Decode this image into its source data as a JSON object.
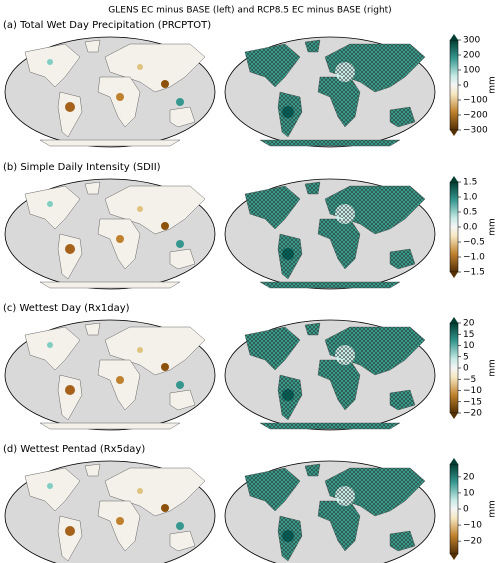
{
  "figure": {
    "title": "GLENS EC minus BASE (left) and RCP8.5 EC minus BASE (right)",
    "panels": [
      {
        "label": "(a) Total Wet Day Precipitation (PRCPTOT)",
        "colorbar": {
          "unit": "mm",
          "lim": [
            -300,
            300
          ],
          "ticks": [
            {
              "value": -300,
              "label": "−300"
            },
            {
              "value": -200,
              "label": "−200"
            },
            {
              "value": -100,
              "label": "−100"
            },
            0,
            100,
            200,
            300
          ]
        }
      },
      {
        "label": "(b) Simple Daily Intensity (SDII)",
        "colorbar": {
          "unit": "mm",
          "lim": [
            -1.5,
            1.5
          ],
          "ticks": [
            {
              "value": -1.5,
              "label": "−1.5"
            },
            {
              "value": -1,
              "label": "−1.0"
            },
            {
              "value": -0.5,
              "label": "−0.5"
            },
            {
              "value": 0,
              "label": "0.0"
            },
            0.5,
            {
              "value": 1,
              "label": "1.0"
            },
            1.5
          ]
        }
      },
      {
        "label": "(c) Wettest Day (Rx1day)",
        "colorbar": {
          "unit": "mm",
          "lim": [
            -20,
            20
          ],
          "ticks": [
            {
              "value": -20,
              "label": "−20"
            },
            {
              "value": -15,
              "label": "−15"
            },
            {
              "value": -10,
              "label": "−10"
            },
            {
              "value": -5,
              "label": "−5"
            },
            0,
            5,
            10,
            15,
            20
          ]
        }
      },
      {
        "label": "(d) Wettest Pentad (Rx5day)",
        "colorbar": {
          "unit": "mm",
          "lim": [
            -28,
            28
          ],
          "ticks": [
            {
              "value": -20,
              "label": "−20"
            },
            {
              "value": -10,
              "label": "−10"
            },
            0,
            10,
            20
          ]
        }
      }
    ]
  }
}
